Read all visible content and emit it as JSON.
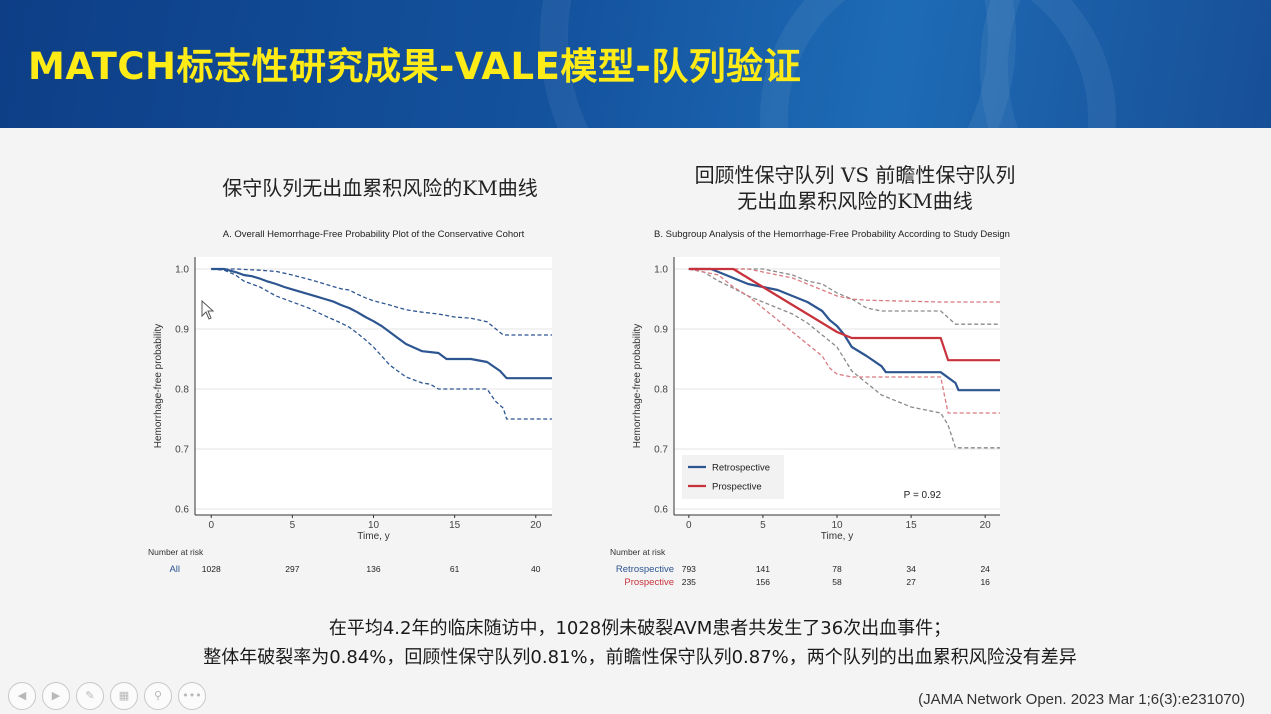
{
  "slide": {
    "title": "MATCH标志性研究成果-VALE模型-队列验证",
    "left_heading": "保守队列无出血累积风险的KM曲线",
    "right_heading_line1": "回顾性保守队列 VS 前瞻性保守队列",
    "right_heading_line2": "无出血累积风险的KM曲线",
    "summary_line1": "在平均4.2年的临床随访中，1028例未破裂AVM患者共发生了36次出血事件；",
    "summary_line2": "整体年破裂率为0.84%，回顾性保守队列0.81%，前瞻性保守队列0.87%，两个队列的出血累积风险没有差异",
    "citation": "(JAMA Network Open. 2023 Mar 1;6(3):e231070)"
  },
  "controls": [
    {
      "name": "prev",
      "icon": "chevron-left-icon",
      "glyph": "◀"
    },
    {
      "name": "next",
      "icon": "chevron-right-icon",
      "glyph": "▶"
    },
    {
      "name": "pen",
      "icon": "pen-icon",
      "glyph": "✎"
    },
    {
      "name": "slides",
      "icon": "slides-icon",
      "glyph": "▦"
    },
    {
      "name": "zoom",
      "icon": "zoom-icon",
      "glyph": "⚲"
    },
    {
      "name": "more",
      "icon": "more-icon",
      "glyph": "•••"
    }
  ],
  "chart_data": [
    {
      "type": "line",
      "id": "A",
      "title": "A. Overall Hemorrhage-Free Probability Plot of the Conservative Cohort",
      "xlabel": "Time, y",
      "ylabel": "Hemorrhage-free probability",
      "xlim": [
        -1,
        21
      ],
      "ylim": [
        0.59,
        1.02
      ],
      "x_ticks": [
        0,
        5,
        10,
        15,
        20
      ],
      "y_ticks": [
        1.0,
        0.9,
        0.8,
        0.7,
        0.6
      ],
      "grid": true,
      "colors": {
        "line": "#2d5590"
      },
      "series": [
        {
          "role": "estimate",
          "dash": false,
          "points": [
            [
              0,
              1.0
            ],
            [
              0.8,
              1.0
            ],
            [
              1.2,
              0.997
            ],
            [
              1.6,
              0.994
            ],
            [
              2,
              0.99
            ],
            [
              2.5,
              0.988
            ],
            [
              3,
              0.984
            ],
            [
              3.5,
              0.979
            ],
            [
              4,
              0.975
            ],
            [
              4.5,
              0.97
            ],
            [
              5,
              0.966
            ],
            [
              5.5,
              0.962
            ],
            [
              6,
              0.958
            ],
            [
              6.5,
              0.954
            ],
            [
              7,
              0.95
            ],
            [
              7.5,
              0.946
            ],
            [
              8,
              0.94
            ],
            [
              8.5,
              0.935
            ],
            [
              9,
              0.928
            ],
            [
              9.5,
              0.92
            ],
            [
              10,
              0.913
            ],
            [
              10.5,
              0.905
            ],
            [
              11,
              0.895
            ],
            [
              11.5,
              0.885
            ],
            [
              12,
              0.875
            ],
            [
              13,
              0.863
            ],
            [
              14,
              0.86
            ],
            [
              14.5,
              0.85
            ],
            [
              16,
              0.85
            ],
            [
              17,
              0.845
            ],
            [
              17.8,
              0.83
            ],
            [
              18.2,
              0.818
            ],
            [
              21,
              0.818
            ]
          ]
        },
        {
          "role": "upper",
          "dash": true,
          "points": [
            [
              0,
              1.0
            ],
            [
              1.5,
              1.0
            ],
            [
              3,
              0.998
            ],
            [
              4,
              0.996
            ],
            [
              5,
              0.99
            ],
            [
              6,
              0.983
            ],
            [
              7,
              0.975
            ],
            [
              8,
              0.967
            ],
            [
              8.5,
              0.965
            ],
            [
              9,
              0.958
            ],
            [
              9.5,
              0.952
            ],
            [
              10,
              0.947
            ],
            [
              11,
              0.94
            ],
            [
              12,
              0.932
            ],
            [
              13,
              0.928
            ],
            [
              14,
              0.925
            ],
            [
              15,
              0.92
            ],
            [
              16,
              0.918
            ],
            [
              17,
              0.912
            ],
            [
              18,
              0.89
            ],
            [
              21,
              0.89
            ]
          ]
        },
        {
          "role": "lower",
          "dash": true,
          "points": [
            [
              0,
              1.0
            ],
            [
              0.8,
              0.998
            ],
            [
              1.5,
              0.99
            ],
            [
              2,
              0.98
            ],
            [
              3,
              0.97
            ],
            [
              4,
              0.955
            ],
            [
              5,
              0.945
            ],
            [
              6,
              0.935
            ],
            [
              7,
              0.922
            ],
            [
              8,
              0.91
            ],
            [
              8.5,
              0.903
            ],
            [
              9,
              0.893
            ],
            [
              9.5,
              0.882
            ],
            [
              10,
              0.87
            ],
            [
              10.5,
              0.855
            ],
            [
              11,
              0.84
            ],
            [
              11.5,
              0.83
            ],
            [
              12,
              0.82
            ],
            [
              13,
              0.81
            ],
            [
              13.5,
              0.808
            ],
            [
              14,
              0.8
            ],
            [
              17,
              0.8
            ],
            [
              17.5,
              0.78
            ],
            [
              18,
              0.768
            ],
            [
              18.2,
              0.75
            ],
            [
              21,
              0.75
            ]
          ]
        }
      ],
      "risk_table": {
        "header": "Number at risk",
        "groups": [
          {
            "label": "All",
            "color": "#2d5590",
            "values": [
              1028,
              297,
              136,
              61,
              40
            ]
          }
        ]
      }
    },
    {
      "type": "line",
      "id": "B",
      "title": "B. Subgroup Analysis of the Hemorrhage-Free Probability According to Study Design",
      "xlabel": "Time, y",
      "ylabel": "Hemorrhage-free probability",
      "xlim": [
        -1,
        21
      ],
      "ylim": [
        0.59,
        1.02
      ],
      "x_ticks": [
        0,
        5,
        10,
        15,
        20
      ],
      "y_ticks": [
        1.0,
        0.9,
        0.8,
        0.7,
        0.6
      ],
      "grid": true,
      "legend": {
        "placement": "bottom-left",
        "entries": [
          "Retrospective",
          "Prospective"
        ]
      },
      "annotation": "P = 0.92",
      "colors": {
        "Retrospective": "#2d5590",
        "Prospective": "#c8323c",
        "retro_ci": "#8a8a8a",
        "pro_ci": "#d97a80"
      },
      "series": [
        {
          "name": "Retrospective",
          "role": "estimate",
          "dash": false,
          "color": "#2d5590",
          "points": [
            [
              0,
              1.0
            ],
            [
              1.5,
              1.0
            ],
            [
              2,
              0.995
            ],
            [
              3,
              0.985
            ],
            [
              4,
              0.975
            ],
            [
              5,
              0.97
            ],
            [
              6,
              0.965
            ],
            [
              7,
              0.955
            ],
            [
              8,
              0.945
            ],
            [
              9,
              0.93
            ],
            [
              9.5,
              0.915
            ],
            [
              10,
              0.905
            ],
            [
              10.5,
              0.89
            ],
            [
              11,
              0.87
            ],
            [
              12,
              0.855
            ],
            [
              13,
              0.838
            ],
            [
              13.3,
              0.828
            ],
            [
              17,
              0.828
            ],
            [
              18,
              0.81
            ],
            [
              18.2,
              0.798
            ],
            [
              21,
              0.798
            ]
          ]
        },
        {
          "name": "Prospective",
          "role": "estimate",
          "dash": false,
          "color": "#c8323c",
          "points": [
            [
              0,
              1.0
            ],
            [
              3,
              1.0
            ],
            [
              4,
              0.985
            ],
            [
              5,
              0.97
            ],
            [
              6,
              0.955
            ],
            [
              7,
              0.94
            ],
            [
              8,
              0.925
            ],
            [
              9,
              0.91
            ],
            [
              10,
              0.895
            ],
            [
              11,
              0.885
            ],
            [
              17,
              0.885
            ],
            [
              17.5,
              0.848
            ],
            [
              21,
              0.848
            ]
          ]
        },
        {
          "name": "Retrospective",
          "role": "upper",
          "dash": true,
          "color": "#8a8a8a",
          "points": [
            [
              0,
              1.0
            ],
            [
              5,
              1.0
            ],
            [
              6,
              0.995
            ],
            [
              7,
              0.99
            ],
            [
              8,
              0.98
            ],
            [
              9,
              0.975
            ],
            [
              10,
              0.96
            ],
            [
              11,
              0.95
            ],
            [
              12,
              0.935
            ],
            [
              13,
              0.93
            ],
            [
              17,
              0.93
            ],
            [
              18,
              0.908
            ],
            [
              21,
              0.908
            ]
          ]
        },
        {
          "name": "Retrospective",
          "role": "lower",
          "dash": true,
          "color": "#8a8a8a",
          "points": [
            [
              0,
              1.0
            ],
            [
              1,
              0.995
            ],
            [
              2,
              0.98
            ],
            [
              3,
              0.968
            ],
            [
              4,
              0.955
            ],
            [
              5,
              0.945
            ],
            [
              6,
              0.935
            ],
            [
              7,
              0.925
            ],
            [
              8,
              0.91
            ],
            [
              9,
              0.89
            ],
            [
              10,
              0.87
            ],
            [
              10.5,
              0.85
            ],
            [
              11,
              0.83
            ],
            [
              12,
              0.81
            ],
            [
              13,
              0.79
            ],
            [
              15,
              0.77
            ],
            [
              17,
              0.76
            ],
            [
              17.5,
              0.74
            ],
            [
              18,
              0.702
            ],
            [
              21,
              0.702
            ]
          ]
        },
        {
          "name": "Prospective",
          "role": "upper",
          "dash": true,
          "color": "#d97a80",
          "points": [
            [
              0,
              1.0
            ],
            [
              4,
              1.0
            ],
            [
              5,
              0.995
            ],
            [
              6,
              0.99
            ],
            [
              7,
              0.985
            ],
            [
              8,
              0.975
            ],
            [
              9,
              0.965
            ],
            [
              10,
              0.955
            ],
            [
              11,
              0.95
            ],
            [
              12,
              0.948
            ],
            [
              17,
              0.945
            ],
            [
              21,
              0.945
            ]
          ]
        },
        {
          "name": "Prospective",
          "role": "lower",
          "dash": true,
          "color": "#d97a80",
          "points": [
            [
              0,
              1.0
            ],
            [
              2,
              0.99
            ],
            [
              3,
              0.97
            ],
            [
              4,
              0.955
            ],
            [
              5,
              0.935
            ],
            [
              6,
              0.915
            ],
            [
              7,
              0.895
            ],
            [
              8,
              0.875
            ],
            [
              9,
              0.855
            ],
            [
              9.5,
              0.835
            ],
            [
              10,
              0.825
            ],
            [
              11,
              0.82
            ],
            [
              17,
              0.82
            ],
            [
              17.5,
              0.76
            ],
            [
              21,
              0.76
            ]
          ]
        }
      ],
      "risk_table": {
        "header": "Number at risk",
        "groups": [
          {
            "label": "Retrospective",
            "color": "#2d5590",
            "values": [
              793,
              141,
              78,
              34,
              24
            ]
          },
          {
            "label": "Prospective",
            "color": "#c8323c",
            "values": [
              235,
              156,
              58,
              27,
              16
            ]
          }
        ]
      }
    }
  ]
}
